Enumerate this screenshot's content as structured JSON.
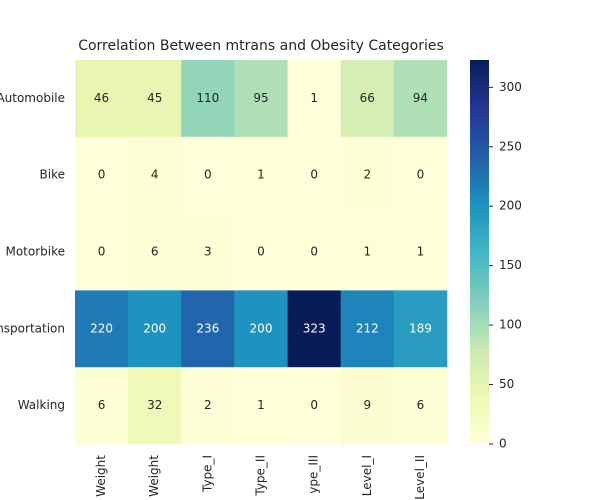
{
  "chart_data": {
    "type": "heatmap",
    "title": "Correlation Between mtrans and Obesity Categories",
    "rows": [
      "Automobile",
      "Bike",
      "Motorbike",
      "nsportation",
      "Walking"
    ],
    "columns": [
      "Weight",
      "Weight",
      "Type_I",
      "Type_II",
      "ype_III",
      "Level_I",
      "Level_II"
    ],
    "values": [
      [
        46,
        45,
        110,
        95,
        1,
        66,
        94
      ],
      [
        0,
        4,
        0,
        1,
        0,
        2,
        0
      ],
      [
        0,
        6,
        3,
        0,
        0,
        1,
        1
      ],
      [
        220,
        200,
        236,
        200,
        323,
        212,
        189
      ],
      [
        6,
        32,
        2,
        1,
        0,
        9,
        6
      ]
    ],
    "zlim": [
      0,
      323
    ],
    "zticks": [
      0,
      50,
      100,
      150,
      200,
      250,
      300
    ],
    "colormap": [
      "#ffffd9",
      "#edf8b1",
      "#c7e9b4",
      "#7fcdbb",
      "#41b6c4",
      "#1d91c0",
      "#225ea8",
      "#253494",
      "#081d58"
    ]
  }
}
